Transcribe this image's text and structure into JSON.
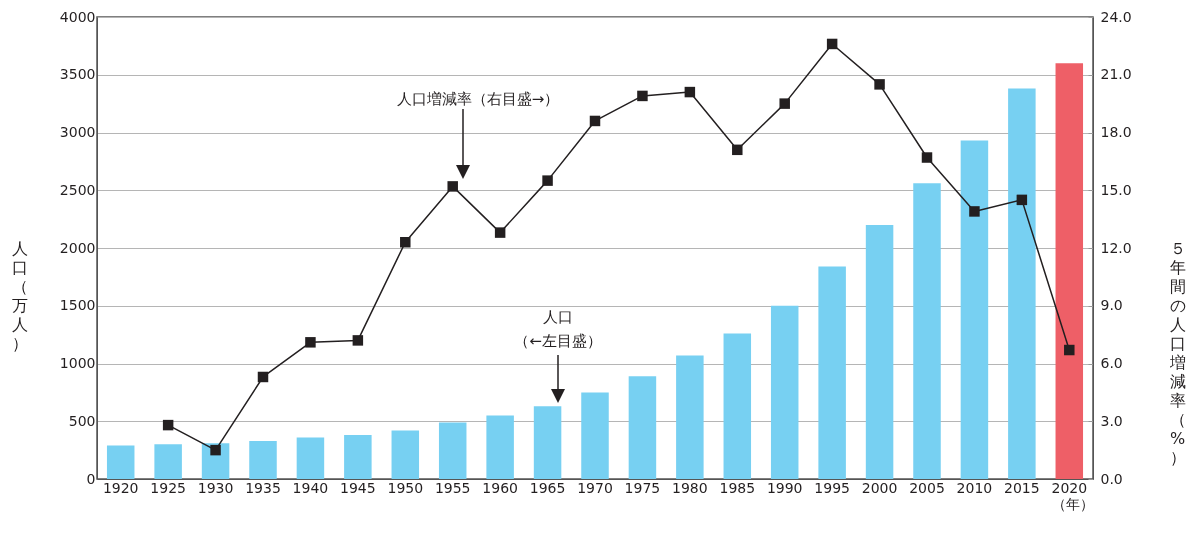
{
  "chart_data": {
    "type": "bar",
    "categories": [
      "1920",
      "1925",
      "1930",
      "1935",
      "1940",
      "1945",
      "1950",
      "1955",
      "1960",
      "1965",
      "1970",
      "1975",
      "1980",
      "1985",
      "1990",
      "1995",
      "2000",
      "2005",
      "2010",
      "2015",
      "2020"
    ],
    "series": [
      {
        "colors": [
          "#77d0f2",
          "#77d0f2",
          "#77d0f2",
          "#77d0f2",
          "#77d0f2",
          "#77d0f2",
          "#77d0f2",
          "#77d0f2",
          "#77d0f2",
          "#77d0f2",
          "#77d0f2",
          "#77d0f2",
          "#77d0f2",
          "#77d0f2",
          "#77d0f2",
          "#77d0f2",
          "#77d0f2",
          "#77d0f2",
          "#77d0f2",
          "#77d0f2",
          "#ee5f67"
        ],
        "values": [
          290,
          300,
          310,
          330,
          360,
          380,
          420,
          490,
          550,
          630,
          750,
          890,
          1070,
          1260,
          1500,
          1840,
          2200,
          2560,
          2930,
          3380,
          3600
        ]
      },
      {
        "type": "line",
        "axis": "y2",
        "color": "#231f20",
        "marker": "square",
        "values": [
          null,
          2.8,
          1.5,
          5.3,
          7.1,
          7.2,
          12.3,
          15.2,
          12.8,
          15.5,
          18.6,
          19.9,
          20.1,
          17.1,
          19.5,
          22.6,
          20.5,
          16.7,
          13.9,
          14.5,
          6.7
        ]
      }
    ],
    "xlabel": "（年）",
    "ylabel": "人口（万人）",
    "y2label": "５年間の人口増減率（%）",
    "ylim": [
      0,
      4000
    ],
    "yticks": [
      0,
      500,
      1000,
      1500,
      2000,
      2500,
      3000,
      3500,
      4000
    ],
    "y2lim": [
      0,
      24
    ],
    "y2ticks": [
      {
        "value": 0,
        "label": "0.0"
      },
      {
        "value": 3,
        "label": "3.0"
      },
      {
        "value": 6,
        "label": "6.0"
      },
      {
        "value": 9,
        "label": "9.0"
      },
      {
        "value": 12,
        "label": "12.0"
      },
      {
        "value": 15,
        "label": "15.0"
      },
      {
        "value": 18,
        "label": "18.0"
      },
      {
        "value": 21,
        "label": "21.0"
      },
      {
        "value": 24,
        "label": "24.0"
      }
    ],
    "grid": "y",
    "annotations": [
      "人口増減率（右目盛→）",
      "人口",
      "（←左目盛）"
    ]
  }
}
